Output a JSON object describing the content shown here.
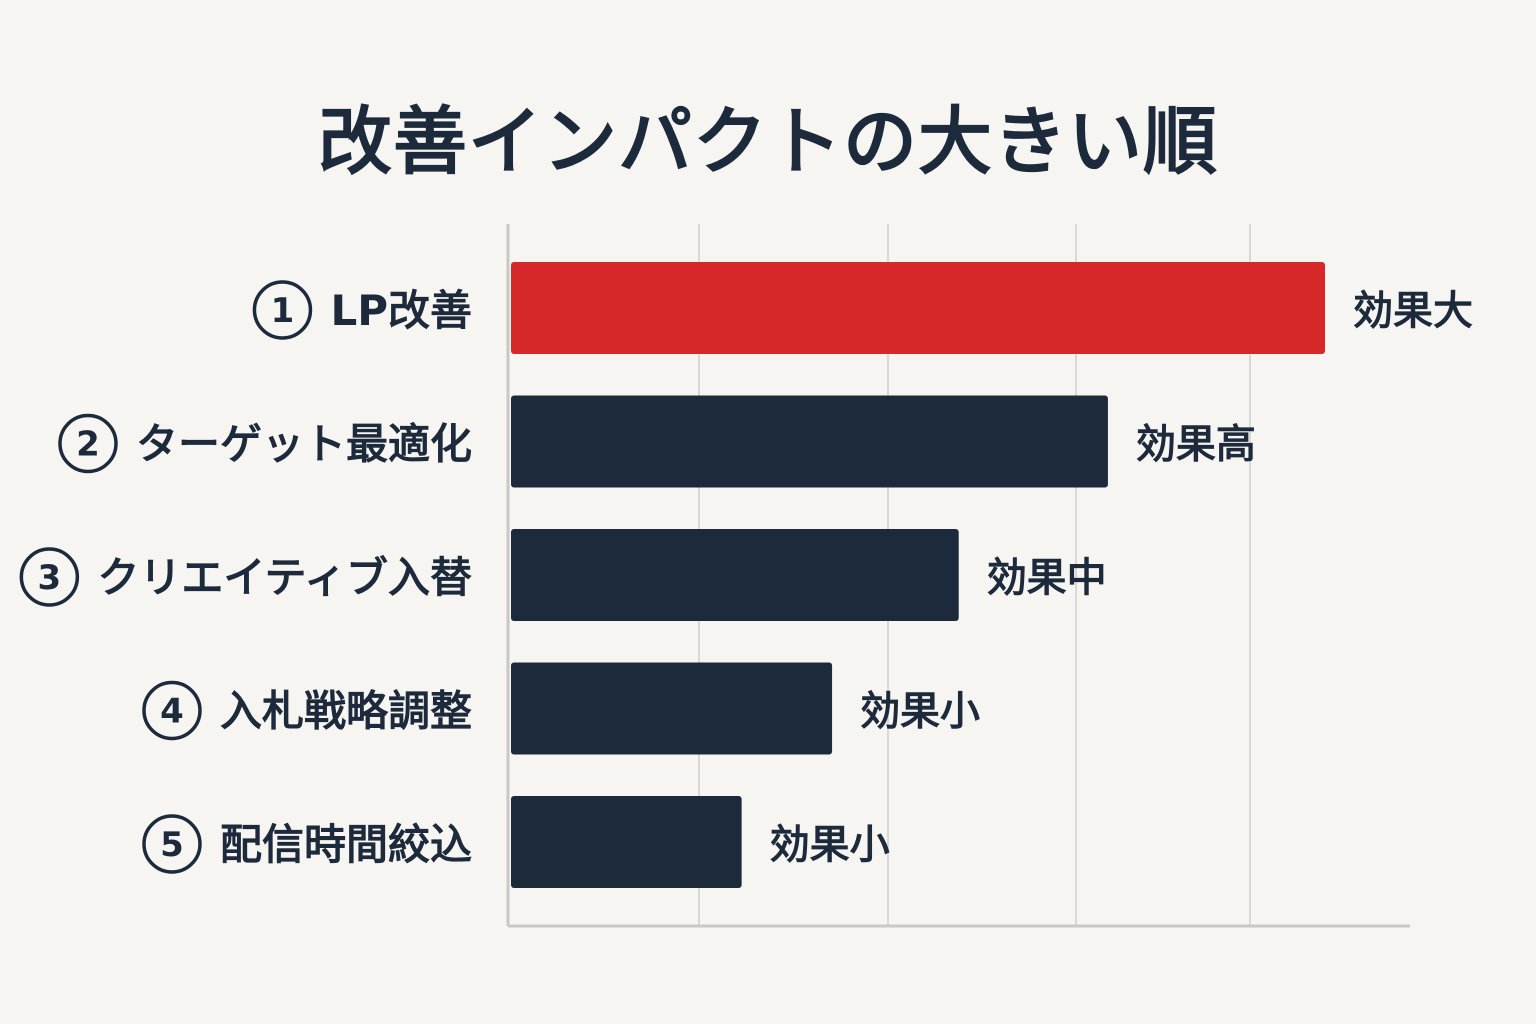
{
  "chart_data": {
    "type": "bar",
    "orientation": "horizontal",
    "title": "改善インパクトの大きい順",
    "categories": [
      {
        "num": "1",
        "label": "LP改善"
      },
      {
        "num": "2",
        "label": "ターゲット最適化"
      },
      {
        "num": "3",
        "label": "クリエイティブ入替"
      },
      {
        "num": "4",
        "label": "入札戦略調整"
      },
      {
        "num": "5",
        "label": "配信時間絞込"
      }
    ],
    "values": [
      90,
      66,
      49.5,
      35.5,
      25.5
    ],
    "value_labels": [
      "効果大",
      "効果高",
      "効果中",
      "効果小",
      "効果小"
    ],
    "xlim": [
      0,
      100
    ],
    "grid": true,
    "highlight_index": 0,
    "colors": {
      "highlight": "#d62828",
      "bar": "#1c2a3c",
      "text": "#1c2a3c",
      "grid": "#d8d8d4",
      "axis": "#c8c8c4",
      "background": "#f6f5f1"
    }
  }
}
